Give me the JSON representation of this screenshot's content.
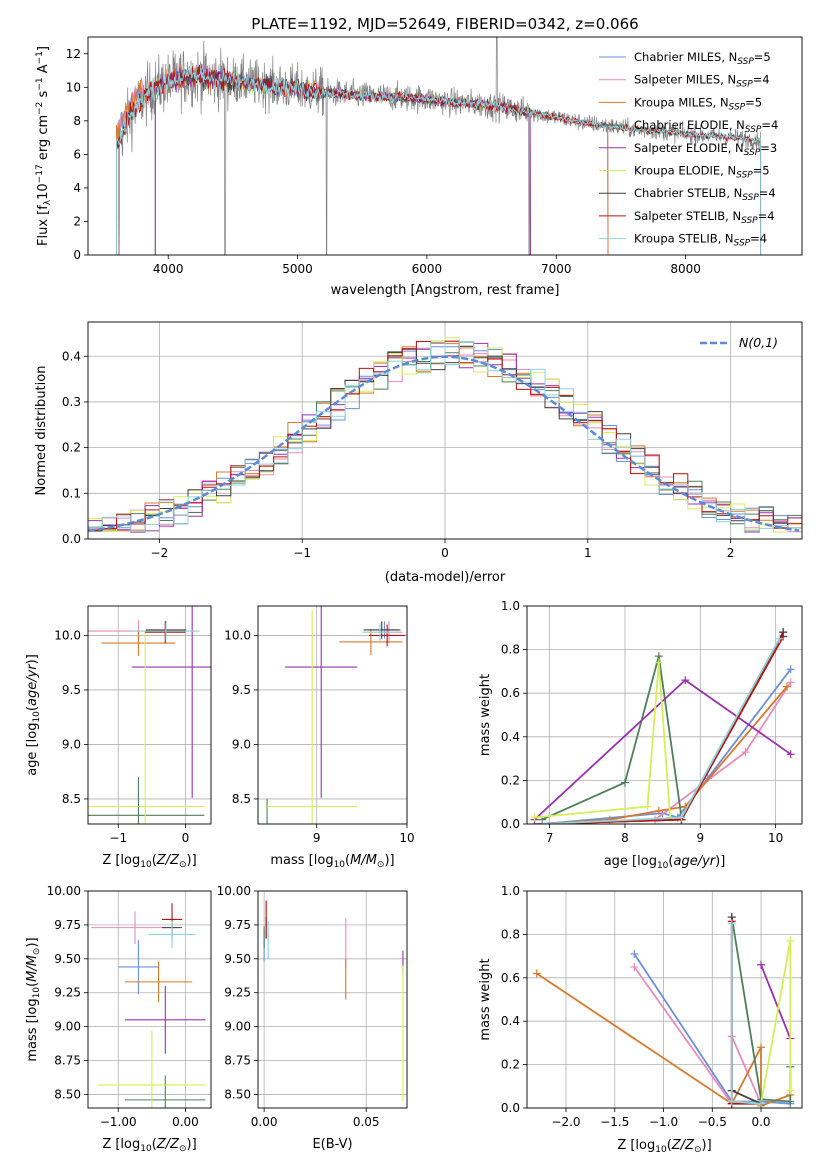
{
  "figure_title": "PLATE=1192, MJD=52649, FIBERID=0342, z=0.066",
  "colors": {
    "Chabrier MILES": "#6a8fdc",
    "Salpeter MILES": "#e88bbb",
    "Kroupa MILES": "#d9782c",
    "Chabrier ELODIE": "#4f7f5a",
    "Salpeter ELODIE": "#9a30b0",
    "Kroupa ELODIE": "#d7ee5a",
    "Chabrier STELIB": "#404040",
    "Salpeter STELIB": "#bb1111",
    "Kroupa STELIB": "#8fd3d8"
  },
  "legend_spectrum": [
    {
      "model": "Chabrier MILES",
      "n": "5"
    },
    {
      "model": "Salpeter MILES",
      "n": "4"
    },
    {
      "model": "Kroupa MILES",
      "n": "5"
    },
    {
      "model": "Chabrier ELODIE",
      "n": "4"
    },
    {
      "model": "Salpeter ELODIE",
      "n": "3"
    },
    {
      "model": "Kroupa ELODIE",
      "n": "5"
    },
    {
      "model": "Chabrier STELIB",
      "n": "4"
    },
    {
      "model": "Salpeter STELIB",
      "n": "4"
    },
    {
      "model": "Kroupa STELIB",
      "n": "4"
    }
  ],
  "legend_n_label": "N",
  "legend_n_sub": "SSP",
  "chart_data": [
    {
      "id": "spectrum",
      "type": "line",
      "xlabel": "wavelength [Angstrom, rest frame]",
      "ylabel": "Flux [f_λ 10^-17 erg cm^-2 s^-1 A^-1]",
      "xlim": [
        3380,
        8900
      ],
      "ylim": [
        0,
        13
      ],
      "xticks": [
        4000,
        5000,
        6000,
        7000,
        8000
      ],
      "yticks": [
        0,
        2,
        4,
        6,
        8,
        10,
        12
      ],
      "grid": false,
      "legend": "top-right",
      "continuum_knots": {
        "x": [
          3600,
          3650,
          3700,
          3800,
          3900,
          4000,
          4100,
          4200,
          4400,
          4600,
          4800,
          5000,
          5200,
          5500,
          5800,
          6000,
          6200,
          6400,
          6600,
          6800,
          7000,
          7200,
          7400,
          7600,
          7800,
          8000,
          8200,
          8400,
          8600,
          8800
        ],
        "y": [
          6.5,
          7.4,
          8.2,
          9.3,
          10.0,
          10.3,
          10.6,
          10.7,
          10.5,
          10.3,
          10.1,
          9.9,
          9.7,
          9.5,
          9.4,
          9.3,
          9.1,
          9.0,
          8.8,
          8.5,
          8.2,
          7.9,
          7.7,
          7.5,
          7.4,
          7.2,
          7.1,
          7.0,
          6.8,
          6.7
        ]
      }
    },
    {
      "id": "residuals",
      "type": "histogram",
      "xlabel": "(data-model)/error",
      "ylabel": "Normed distribution",
      "xlim": [
        -2.5,
        2.5
      ],
      "ylim": [
        0,
        0.475
      ],
      "xticks": [
        -2,
        -1,
        0,
        1,
        2
      ],
      "yticks": [
        0.0,
        0.1,
        0.2,
        0.3,
        0.4
      ],
      "grid": true,
      "legend": "top-right",
      "reference_curve": "N(0,1)",
      "bin_width": 0.1
    },
    {
      "id": "age_vs_Z",
      "type": "errorbar",
      "xlabel": "Z [log10(Z/Z_sun)]",
      "ylabel": "age  [log10(age/yr)]",
      "xlim": [
        -1.45,
        0.38
      ],
      "ylim": [
        8.27,
        10.27
      ],
      "xticks": [
        -1,
        0
      ],
      "yticks": [
        8.5,
        9.0,
        9.5,
        10.0
      ],
      "grid": true,
      "points": [
        {
          "model": "Chabrier MILES",
          "x": -0.3,
          "xerr": 0.3,
          "y": 10.04,
          "yerr": 0.08
        },
        {
          "model": "Salpeter MILES",
          "x": -0.7,
          "xerr": 0.85,
          "y": 10.04,
          "yerr": 0.1
        },
        {
          "model": "Kroupa MILES",
          "x": -0.7,
          "xerr": 0.55,
          "y": 9.93,
          "yerr": 0.12
        },
        {
          "model": "Chabrier ELODIE",
          "x": -0.7,
          "xerr": 0.98,
          "y": 8.35,
          "yerr": 0.35
        },
        {
          "model": "Salpeter ELODIE",
          "x": 0.1,
          "xerr": 0.9,
          "y": 9.71,
          "yerr": 1.2
        },
        {
          "model": "Kroupa ELODIE",
          "x": -0.6,
          "xerr": 0.88,
          "y": 8.43,
          "yerr": 1.6
        },
        {
          "model": "Chabrier STELIB",
          "x": -0.29,
          "xerr": 0.3,
          "y": 10.05,
          "yerr": 0.08
        },
        {
          "model": "Salpeter STELIB",
          "x": -0.3,
          "xerr": 0.3,
          "y": 10.03,
          "yerr": 0.1
        },
        {
          "model": "Kroupa STELIB",
          "x": -0.29,
          "xerr": 0.5,
          "y": 10.04,
          "yerr": 0.08
        }
      ]
    },
    {
      "id": "age_vs_mass",
      "type": "errorbar",
      "xlabel": "mass [log10(M/M_sun)]",
      "ylabel": "",
      "xlim": [
        8.35,
        10.0
      ],
      "ylim": [
        8.27,
        10.27
      ],
      "xticks": [
        9,
        10
      ],
      "yticks": [
        8.5,
        9.0,
        9.5,
        10.0
      ],
      "grid": true,
      "points": [
        {
          "model": "Chabrier MILES",
          "x": 9.75,
          "xerr": 0.18,
          "y": 10.05,
          "yerr": 0.08
        },
        {
          "model": "Salpeter MILES",
          "x": 9.8,
          "xerr": 0.15,
          "y": 10.03,
          "yerr": 0.1
        },
        {
          "model": "Kroupa MILES",
          "x": 9.6,
          "xerr": 0.35,
          "y": 9.94,
          "yerr": 0.12
        },
        {
          "model": "Chabrier ELODIE",
          "x": 8.45,
          "xerr": 0.0,
          "y": 8.35,
          "yerr": 0.15
        },
        {
          "model": "Salpeter ELODIE",
          "x": 9.05,
          "xerr": 0.4,
          "y": 9.71,
          "yerr": 1.2
        },
        {
          "model": "Kroupa ELODIE",
          "x": 8.95,
          "xerr": 0.5,
          "y": 8.43,
          "yerr": 1.8
        },
        {
          "model": "Chabrier STELIB",
          "x": 9.72,
          "xerr": 0.2,
          "y": 10.05,
          "yerr": 0.08
        },
        {
          "model": "Salpeter STELIB",
          "x": 9.78,
          "xerr": 0.2,
          "y": 10.0,
          "yerr": 0.1
        },
        {
          "model": "Kroupa STELIB",
          "x": 9.7,
          "xerr": 0.2,
          "y": 10.03,
          "yerr": 0.08
        }
      ]
    },
    {
      "id": "weights_vs_age",
      "type": "line",
      "xlabel": "age  [log10(age/yr)]",
      "ylabel": "mass weight",
      "xlim": [
        6.7,
        10.35
      ],
      "ylim": [
        0,
        1
      ],
      "xticks": [
        7,
        8,
        9,
        10
      ],
      "yticks": [
        0.0,
        0.2,
        0.4,
        0.6,
        0.8,
        1.0
      ],
      "grid": true,
      "series": [
        {
          "model": "Chabrier MILES",
          "x": [
            6.9,
            8.5,
            8.7,
            9.1,
            10.2
          ],
          "y": [
            0.0,
            0.05,
            0.03,
            0.21,
            0.71
          ]
        },
        {
          "model": "Salpeter MILES",
          "x": [
            6.8,
            8.4,
            9.6,
            10.2
          ],
          "y": [
            0.0,
            0.02,
            0.33,
            0.65
          ]
        },
        {
          "model": "Kroupa MILES",
          "x": [
            6.9,
            7.8,
            8.45,
            8.8,
            10.15
          ],
          "y": [
            0.0,
            0.02,
            0.06,
            0.08,
            0.63
          ]
        },
        {
          "model": "Chabrier ELODIE",
          "x": [
            6.9,
            8.0,
            8.45,
            8.75,
            10.1
          ],
          "y": [
            0.02,
            0.19,
            0.77,
            0.03,
            0.88
          ]
        },
        {
          "model": "Salpeter ELODIE",
          "x": [
            6.8,
            8.8,
            10.2
          ],
          "y": [
            0.02,
            0.66,
            0.32
          ]
        },
        {
          "model": "Kroupa ELODIE",
          "x": [
            6.8,
            8.3,
            8.45,
            8.6,
            8.75
          ],
          "y": [
            0.03,
            0.08,
            0.74,
            0.03,
            0.02
          ]
        },
        {
          "model": "Chabrier STELIB",
          "x": [
            6.9,
            8.75,
            10.1
          ],
          "y": [
            0.0,
            0.02,
            0.88
          ]
        },
        {
          "model": "Salpeter STELIB",
          "x": [
            6.9,
            8.75,
            10.1
          ],
          "y": [
            0.0,
            0.02,
            0.86
          ]
        },
        {
          "model": "Kroupa STELIB",
          "x": [
            6.9,
            8.75,
            10.05
          ],
          "y": [
            0.0,
            0.03,
            0.85
          ]
        }
      ]
    },
    {
      "id": "mass_vs_Z",
      "type": "errorbar",
      "xlabel": "Z [log10(Z/Z_sun)]",
      "ylabel": "mass [log10(M/M_sun)]",
      "xlim": [
        -1.45,
        0.38
      ],
      "ylim": [
        8.4,
        10.0
      ],
      "xticks": [
        -1,
        0
      ],
      "yticks": [
        8.5,
        8.75,
        9.0,
        9.25,
        9.5,
        9.75,
        10.0
      ],
      "grid": true,
      "points": [
        {
          "model": "Chabrier MILES",
          "x": -0.7,
          "xerr": 0.3,
          "y": 9.44,
          "yerr": 0.2
        },
        {
          "model": "Salpeter MILES",
          "x": -0.75,
          "xerr": 0.65,
          "y": 9.73,
          "yerr": 0.12
        },
        {
          "model": "Kroupa MILES",
          "x": -0.4,
          "xerr": 0.5,
          "y": 9.33,
          "yerr": 0.15
        },
        {
          "model": "Chabrier ELODIE",
          "x": -0.3,
          "xerr": 0.6,
          "y": 8.46,
          "yerr": 0.18
        },
        {
          "model": "Salpeter ELODIE",
          "x": -0.3,
          "xerr": 0.6,
          "y": 9.05,
          "yerr": 0.25
        },
        {
          "model": "Kroupa ELODIE",
          "x": -0.5,
          "xerr": 0.8,
          "y": 8.57,
          "yerr": 0.4
        },
        {
          "model": "Chabrier STELIB",
          "x": -0.2,
          "xerr": 0.15,
          "y": 9.73,
          "yerr": 0.1
        },
        {
          "model": "Salpeter STELIB",
          "x": -0.2,
          "xerr": 0.15,
          "y": 9.79,
          "yerr": 0.12
        },
        {
          "model": "Kroupa STELIB",
          "x": -0.2,
          "xerr": 0.35,
          "y": 9.68,
          "yerr": 0.1
        }
      ]
    },
    {
      "id": "mass_vs_EBV",
      "type": "errorbar",
      "xlabel": "E(B-V)",
      "ylabel": "",
      "xlim": [
        -0.003,
        0.07
      ],
      "ylim": [
        8.4,
        10.0
      ],
      "xticks": [
        0.0,
        0.05
      ],
      "yticks": [
        8.5,
        8.75,
        9.0,
        9.25,
        9.5,
        9.75,
        10.0
      ],
      "grid": true,
      "points": [
        {
          "model": "Chabrier MILES",
          "x": 0.0,
          "xerr": 0,
          "y": 9.6,
          "yerr": 0.12
        },
        {
          "model": "Salpeter MILES",
          "x": 0.04,
          "xerr": 0,
          "y": 9.62,
          "yerr": 0.18
        },
        {
          "model": "Kroupa MILES",
          "x": 0.04,
          "xerr": 0,
          "y": 9.35,
          "yerr": 0.15
        },
        {
          "model": "Chabrier ELODIE",
          "x": 0.0,
          "xerr": 0,
          "y": 9.66,
          "yerr": 0.08
        },
        {
          "model": "Salpeter ELODIE",
          "x": 0.068,
          "xerr": 0,
          "y": 9.48,
          "yerr": 0.08
        },
        {
          "model": "Kroupa ELODIE",
          "x": 0.068,
          "xerr": 0,
          "y": 8.95,
          "yerr": 0.5
        },
        {
          "model": "Chabrier STELIB",
          "x": 0.001,
          "xerr": 0,
          "y": 9.73,
          "yerr": 0.08
        },
        {
          "model": "Salpeter STELIB",
          "x": 0.001,
          "xerr": 0,
          "y": 9.79,
          "yerr": 0.14
        },
        {
          "model": "Kroupa STELIB",
          "x": 0.002,
          "xerr": 0,
          "y": 9.64,
          "yerr": 0.14
        }
      ]
    },
    {
      "id": "weights_vs_Z",
      "type": "line",
      "xlabel": "Z [log10(Z/Z_sun)]",
      "ylabel": "mass weight",
      "xlim": [
        -2.4,
        0.42
      ],
      "ylim": [
        0,
        1
      ],
      "xticks": [
        -2.0,
        -1.5,
        -1.0,
        -0.5,
        0.0
      ],
      "yticks": [
        0.0,
        0.2,
        0.4,
        0.6,
        0.8,
        1.0
      ],
      "grid": true,
      "series": [
        {
          "model": "Chabrier MILES",
          "x": [
            -1.3,
            -0.3,
            0.0,
            0.3
          ],
          "y": [
            0.71,
            0.03,
            0.03,
            0.02
          ]
        },
        {
          "model": "Salpeter MILES",
          "x": [
            -1.3,
            -0.3,
            -0.3,
            0.0
          ],
          "y": [
            0.65,
            0.02,
            0.33,
            0.02
          ]
        },
        {
          "model": "Kroupa MILES",
          "x": [
            -2.3,
            -0.3,
            0.0,
            0.0,
            0.3
          ],
          "y": [
            0.62,
            0.02,
            0.28,
            0.01,
            0.06
          ]
        },
        {
          "model": "Chabrier ELODIE",
          "x": [
            -0.3,
            0.0,
            0.3,
            0.3
          ],
          "y": [
            0.88,
            0.04,
            0.03,
            0.19
          ]
        },
        {
          "model": "Salpeter ELODIE",
          "x": [
            0.0,
            0.3
          ],
          "y": [
            0.66,
            0.32
          ]
        },
        {
          "model": "Kroupa ELODIE",
          "x": [
            -0.3,
            0.0,
            0.3,
            0.3
          ],
          "y": [
            0.03,
            0.02,
            0.77,
            0.08
          ]
        },
        {
          "model": "Chabrier STELIB",
          "x": [
            -0.3,
            -0.3,
            0.0
          ],
          "y": [
            0.88,
            0.08,
            0.02
          ]
        },
        {
          "model": "Salpeter STELIB",
          "x": [
            -0.3,
            -0.3,
            0.0
          ],
          "y": [
            0.86,
            0.02,
            0.02
          ]
        },
        {
          "model": "Kroupa STELIB",
          "x": [
            -0.3,
            -0.3,
            0.0
          ],
          "y": [
            0.85,
            0.03,
            0.02
          ]
        }
      ]
    }
  ]
}
